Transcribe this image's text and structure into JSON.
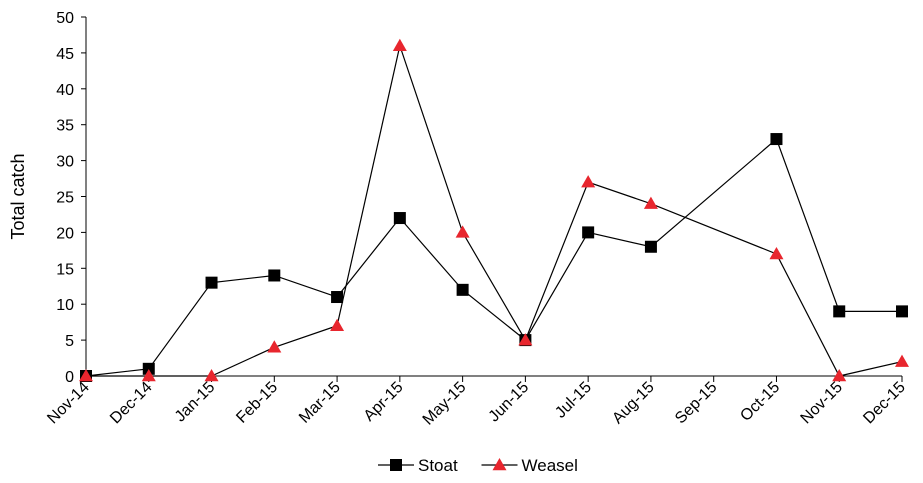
{
  "chart_data": {
    "type": "line",
    "title": "",
    "xlabel": "",
    "ylabel": "Total catch",
    "ylim": [
      0,
      50
    ],
    "yticks": [
      0,
      5,
      10,
      15,
      20,
      25,
      30,
      35,
      40,
      45,
      50
    ],
    "grid": false,
    "legend_position": "bottom-center",
    "categories": [
      "Nov-14",
      "Dec-14",
      "Jan-15",
      "Feb-15",
      "Mar-15",
      "Apr-15",
      "May-15",
      "Jun-15",
      "Jul-15",
      "Aug-15",
      "Sep-15",
      "Oct-15",
      "Nov-15",
      "Dec-15"
    ],
    "series": [
      {
        "name": "Stoat",
        "marker": "square",
        "color": "#000000",
        "values": [
          0,
          1,
          13,
          14,
          11,
          22,
          12,
          5,
          20,
          18,
          null,
          33,
          9,
          9
        ]
      },
      {
        "name": "Weasel",
        "marker": "triangle",
        "color": "#e8262e",
        "values": [
          0,
          0,
          0,
          4,
          7,
          46,
          20,
          5,
          27,
          24,
          null,
          17,
          0,
          2
        ]
      }
    ]
  }
}
